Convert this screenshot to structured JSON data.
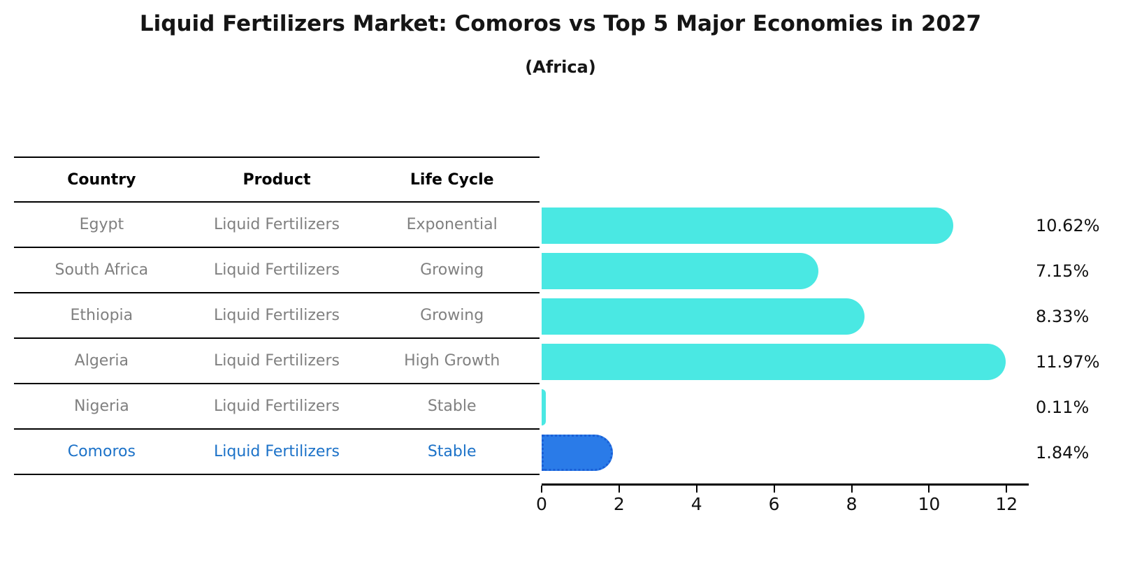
{
  "title": "Liquid Fertilizers Market: Comoros vs Top 5 Major Economies in 2027",
  "subtitle": "(Africa)",
  "table": {
    "headers": [
      "Country",
      "Product",
      "Life Cycle"
    ],
    "rows": [
      {
        "country": "Egypt",
        "product": "Liquid Fertilizers",
        "life_cycle": "Exponential"
      },
      {
        "country": "South Africa",
        "product": "Liquid Fertilizers",
        "life_cycle": "Growing"
      },
      {
        "country": "Ethiopia",
        "product": "Liquid Fertilizers",
        "life_cycle": "Growing"
      },
      {
        "country": "Algeria",
        "product": "Liquid Fertilizers",
        "life_cycle": "High Growth"
      },
      {
        "country": "Nigeria",
        "product": "Liquid Fertilizers",
        "life_cycle": "Stable"
      },
      {
        "country": "Comoros",
        "product": "Liquid Fertilizers",
        "life_cycle": "Stable"
      }
    ]
  },
  "chart_data": {
    "type": "bar",
    "orientation": "horizontal",
    "title": "Liquid Fertilizers Market: Comoros vs Top 5 Major Economies in 2027",
    "subtitle": "(Africa)",
    "categories": [
      "Egypt",
      "South Africa",
      "Ethiopia",
      "Algeria",
      "Nigeria",
      "Comoros"
    ],
    "values": [
      10.62,
      7.15,
      8.33,
      11.97,
      0.11,
      1.84
    ],
    "value_labels": [
      "10.62%",
      "7.15%",
      "8.33%",
      "11.97%",
      "0.11%",
      "1.84%"
    ],
    "xticks": [
      0,
      2,
      4,
      6,
      8,
      10,
      12
    ],
    "xtick_labels": [
      "0",
      "2",
      "4",
      "6",
      "8",
      "10",
      "12"
    ],
    "xlim": [
      0,
      12.5
    ],
    "grid": false,
    "legend": false,
    "highlight_index": 5,
    "bar_color": "#4AE8E3",
    "highlight_bar_color": "#2A7BE8",
    "highlight_border_color": "#1A5FD6",
    "highlight_text_color": "#1C72C8"
  },
  "colors": {
    "text_muted": "#808080",
    "text_dark": "#111111"
  }
}
